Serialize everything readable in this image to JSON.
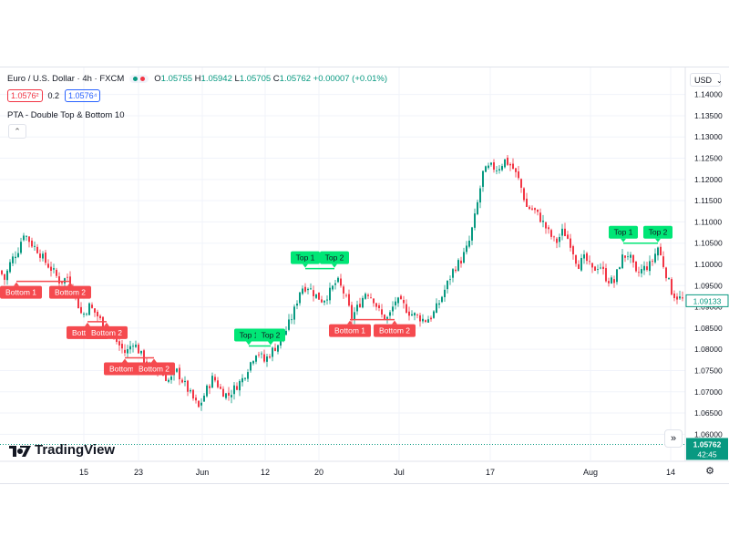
{
  "header": {
    "symbol": "Euro / U.S. Dollar · 4h · FXCM",
    "ohlc": [
      {
        "k": "O",
        "v": "1.05755"
      },
      {
        "k": "H",
        "v": "1.05942"
      },
      {
        "k": "L",
        "v": "1.05705"
      },
      {
        "k": "C",
        "v": "1.05762"
      }
    ],
    "change": "+0.00007 (+0.01%)",
    "bid": "1.0576²",
    "spread": "0.2",
    "ask": "1.0576⁴",
    "indicator": "PTA - Double Top & Bottom 10",
    "currency": "USD"
  },
  "brand": "TradingView",
  "colors": {
    "up": "#089981",
    "down": "#f23645",
    "top_label": "#00e676",
    "bottom_label": "#f54a4f",
    "grid": "#f0f3fa"
  },
  "chart_data": {
    "type": "candlestick",
    "y_ticks": [
      "1.14000",
      "1.13500",
      "1.13000",
      "1.12500",
      "1.12000",
      "1.11500",
      "1.11000",
      "1.10500",
      "1.10000",
      "1.09500",
      "1.09000",
      "1.08500",
      "1.08000",
      "1.07500",
      "1.07000",
      "1.06500",
      "1.06000"
    ],
    "ylim": [
      1.0575,
      1.1425
    ],
    "x_ticks": [
      "15",
      "23",
      "Jun",
      "12",
      "20",
      "Jul",
      "17",
      "Aug",
      "14"
    ],
    "current_price": "1.09133",
    "last_price": "1.05762",
    "countdown": "42:45",
    "path": [
      [
        0,
        1.0985
      ],
      [
        5,
        1.0965
      ],
      [
        12,
        1.1008
      ],
      [
        20,
        1.1035
      ],
      [
        26,
        1.1075
      ],
      [
        34,
        1.105
      ],
      [
        42,
        1.1032
      ],
      [
        50,
        1.1005
      ],
      [
        58,
        1.0985
      ],
      [
        66,
        1.0958
      ],
      [
        74,
        1.097
      ],
      [
        82,
        1.093
      ],
      [
        90,
        1.0878
      ],
      [
        98,
        1.0902
      ],
      [
        106,
        1.0882
      ],
      [
        114,
        1.0855
      ],
      [
        122,
        1.0838
      ],
      [
        130,
        1.0812
      ],
      [
        138,
        1.079
      ],
      [
        146,
        1.0818
      ],
      [
        154,
        1.079
      ],
      [
        162,
        1.076
      ],
      [
        170,
        1.0755
      ],
      [
        178,
        1.0742
      ],
      [
        186,
        1.0725
      ],
      [
        194,
        1.0748
      ],
      [
        202,
        1.072
      ],
      [
        210,
        1.069
      ],
      [
        218,
        1.0662
      ],
      [
        226,
        1.0702
      ],
      [
        234,
        1.0735
      ],
      [
        242,
        1.0705
      ],
      [
        250,
        1.069
      ],
      [
        258,
        1.071
      ],
      [
        266,
        1.073
      ],
      [
        274,
        1.0765
      ],
      [
        282,
        1.0798
      ],
      [
        290,
        1.0772
      ],
      [
        298,
        1.0795
      ],
      [
        306,
        1.0815
      ],
      [
        314,
        1.0845
      ],
      [
        322,
        1.0885
      ],
      [
        330,
        1.0945
      ],
      [
        338,
        1.0948
      ],
      [
        346,
        1.0928
      ],
      [
        354,
        1.0915
      ],
      [
        362,
        1.0935
      ],
      [
        370,
        1.0962
      ],
      [
        378,
        1.093
      ],
      [
        386,
        1.0875
      ],
      [
        394,
        1.0905
      ],
      [
        402,
        1.0938
      ],
      [
        410,
        1.0918
      ],
      [
        418,
        1.088
      ],
      [
        426,
        1.0872
      ],
      [
        434,
        1.0915
      ],
      [
        442,
        1.0905
      ],
      [
        450,
        1.0885
      ],
      [
        458,
        1.0878
      ],
      [
        466,
        1.0868
      ],
      [
        474,
        1.0878
      ],
      [
        482,
        1.091
      ],
      [
        490,
        1.095
      ],
      [
        498,
        1.099
      ],
      [
        506,
        1.101
      ],
      [
        514,
        1.1045
      ],
      [
        522,
        1.112
      ],
      [
        530,
        1.1215
      ],
      [
        538,
        1.123
      ],
      [
        546,
        1.1225
      ],
      [
        554,
        1.1245
      ],
      [
        562,
        1.123
      ],
      [
        570,
        1.1195
      ],
      [
        578,
        1.1135
      ],
      [
        586,
        1.1128
      ],
      [
        594,
        1.1105
      ],
      [
        602,
        1.1075
      ],
      [
        610,
        1.105
      ],
      [
        618,
        1.108
      ],
      [
        626,
        1.105
      ],
      [
        634,
        1.0998
      ],
      [
        642,
        1.1015
      ],
      [
        650,
        1.0985
      ],
      [
        658,
        1.1
      ],
      [
        666,
        1.0965
      ],
      [
        674,
        1.0958
      ],
      [
        682,
        1.1015
      ],
      [
        690,
        1.1025
      ],
      [
        698,
        1.0975
      ],
      [
        706,
        1.099
      ],
      [
        714,
        1.1
      ],
      [
        722,
        1.104
      ],
      [
        730,
        1.0985
      ],
      [
        738,
        1.093
      ],
      [
        746,
        1.092
      ],
      [
        752,
        1.0913
      ]
    ],
    "patterns": [
      {
        "type": "bottom",
        "labels": [
          "Bottom 1",
          "Bottom 2"
        ],
        "x1": 18,
        "x2": 77,
        "level": 1.096
      },
      {
        "type": "bottom",
        "labels": [
          "Bottom 1",
          "Bottom 2"
        ],
        "x1": 96,
        "x2": 117,
        "level": 1.0865
      },
      {
        "type": "bottom",
        "labels": [
          "Bottom 1",
          "Bottom 2"
        ],
        "x1": 137,
        "x2": 169,
        "level": 1.078
      },
      {
        "type": "top",
        "labels": [
          "Top 1",
          "Top 2"
        ],
        "x1": 273,
        "x2": 297,
        "level": 1.0808
      },
      {
        "type": "top",
        "labels": [
          "Top 1",
          "Top 2"
        ],
        "x1": 335,
        "x2": 367,
        "level": 1.099
      },
      {
        "type": "bottom",
        "labels": [
          "Bottom 1",
          "Bottom 2"
        ],
        "x1": 384,
        "x2": 433,
        "level": 1.087
      },
      {
        "type": "top",
        "labels": [
          "Top 1",
          "Top 2"
        ],
        "x1": 684,
        "x2": 722,
        "level": 1.105
      }
    ]
  }
}
